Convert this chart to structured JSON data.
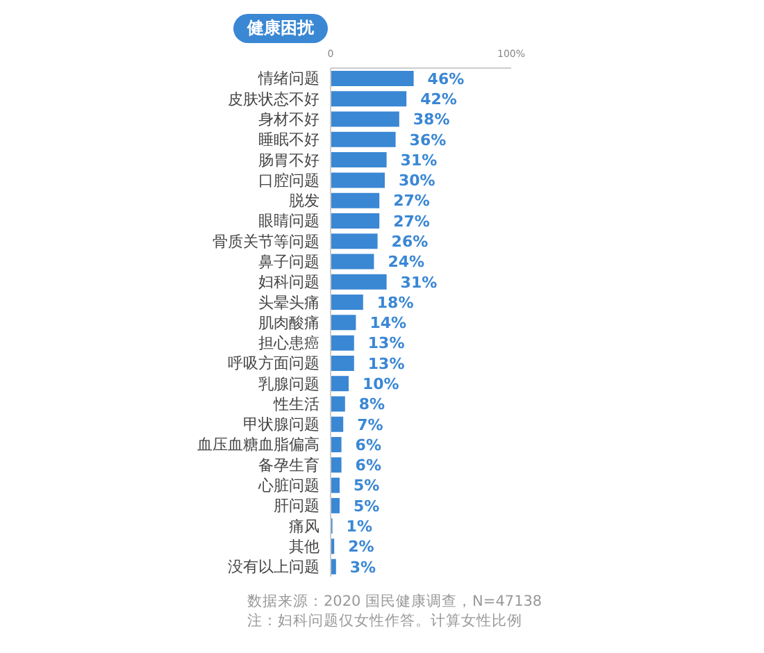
{
  "chart_data": {
    "type": "bar",
    "orientation": "horizontal",
    "title": "健康困扰",
    "categories": [
      "情绪问题",
      "皮肤状态不好",
      "身材不好",
      "睡眠不好",
      "肠胃不好",
      "口腔问题",
      "脱发",
      "眼睛问题",
      "骨质关节等问题",
      "鼻子问题",
      "妇科问题",
      "头晕头痛",
      "肌肉酸痛",
      "担心患癌",
      "呼吸方面问题",
      "乳腺问题",
      "性生活",
      "甲状腺问题",
      "血压血糖血脂偏高",
      "备孕生育",
      "心脏问题",
      "肝问题",
      "痛风",
      "其他",
      "没有以上问题"
    ],
    "values": [
      46,
      42,
      38,
      36,
      31,
      30,
      27,
      27,
      26,
      24,
      31,
      18,
      14,
      13,
      13,
      10,
      8,
      7,
      6,
      6,
      5,
      5,
      1,
      2,
      3
    ],
    "value_labels": [
      "46%",
      "42%",
      "38%",
      "36%",
      "31%",
      "30%",
      "27%",
      "27%",
      "26%",
      "24%",
      "31%",
      "18%",
      "14%",
      "13%",
      "13%",
      "10%",
      "8%",
      "7%",
      "6%",
      "6%",
      "5%",
      "5%",
      "1%",
      "2%",
      "3%"
    ],
    "color": "#3a87d4",
    "xlim": [
      0,
      100
    ],
    "xticks": [
      0,
      {
        "value": 100,
        "label": "100%"
      }
    ],
    "grid": false,
    "annotations": [
      "数据来源：2020 国民健康调查，N=47138",
      "注：妇科问题仅女性作答。计算女性比例"
    ]
  }
}
